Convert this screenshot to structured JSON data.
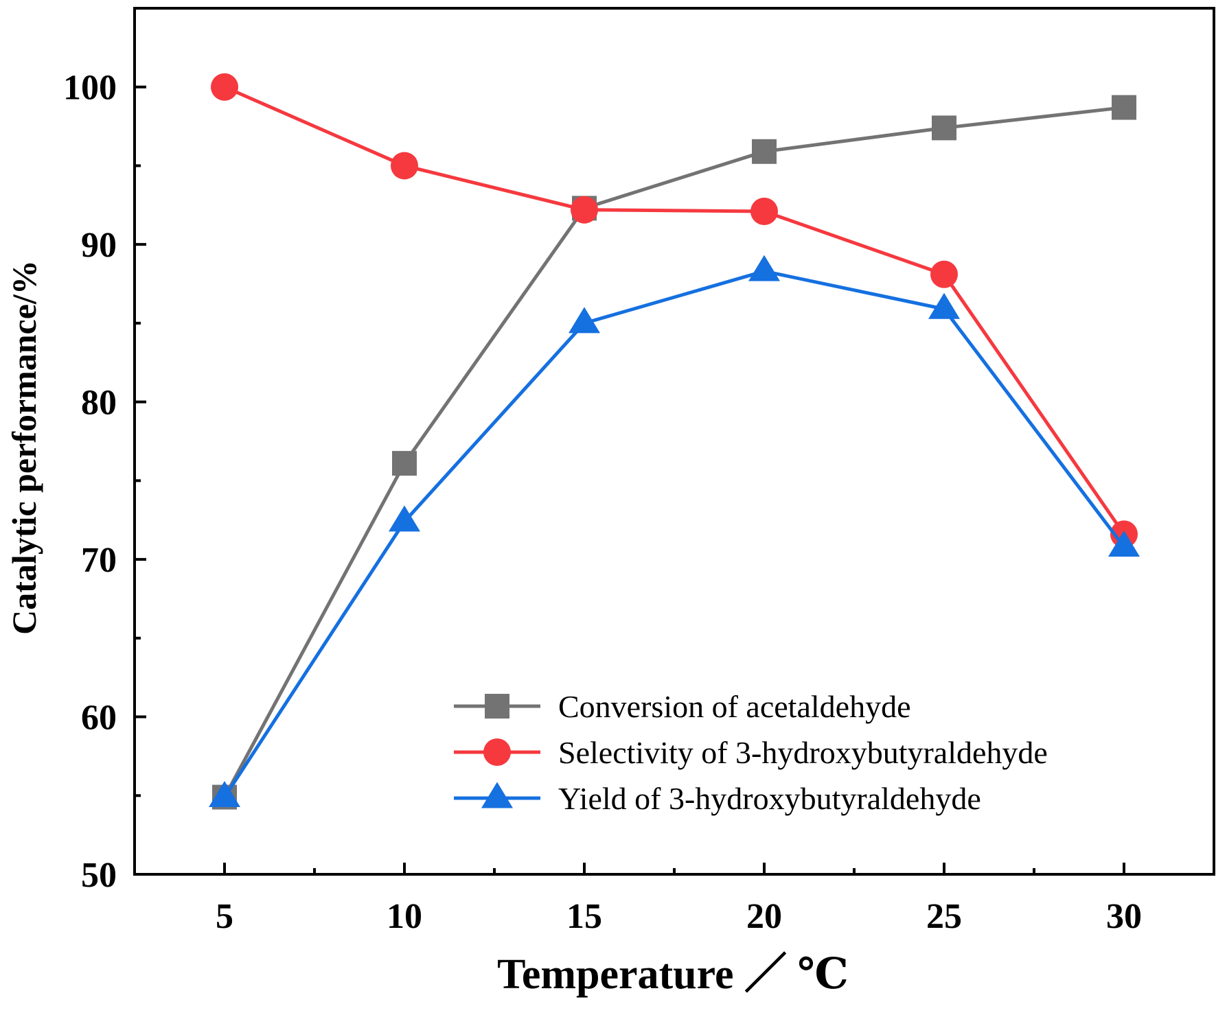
{
  "chart_data": {
    "type": "line",
    "title": "",
    "xlabel": "Temperature ／ ℃",
    "ylabel": "Catalytic performance/%",
    "x": [
      5,
      10,
      15,
      20,
      25,
      30
    ],
    "xlim": [
      2.5,
      32.5
    ],
    "ylim": [
      50,
      105
    ],
    "xticks": [
      5,
      10,
      15,
      20,
      25,
      30
    ],
    "yticks": [
      50,
      60,
      70,
      80,
      90,
      100
    ],
    "xminor": [
      7.5,
      12.5,
      17.5,
      22.5,
      27.5
    ],
    "yminor": [
      55,
      65,
      75,
      85,
      95
    ],
    "grid": false,
    "legend_position": "bottom-right",
    "series": [
      {
        "name": "Conversion of acetaldehyde",
        "marker": "square",
        "color": "#737373",
        "values": [
          54.9,
          76.1,
          92.3,
          95.9,
          97.4,
          98.7
        ]
      },
      {
        "name": "Selectivity of 3-hydroxybutyraldehyde",
        "marker": "circle",
        "color": "#f5393f",
        "values": [
          100.0,
          95.0,
          92.2,
          92.1,
          88.1,
          71.6
        ]
      },
      {
        "name": "Yield of 3-hydroxybutyraldehyde",
        "marker": "triangle",
        "color": "#1570e0",
        "values": [
          54.9,
          72.4,
          85.0,
          88.3,
          85.9,
          70.8
        ]
      }
    ]
  }
}
